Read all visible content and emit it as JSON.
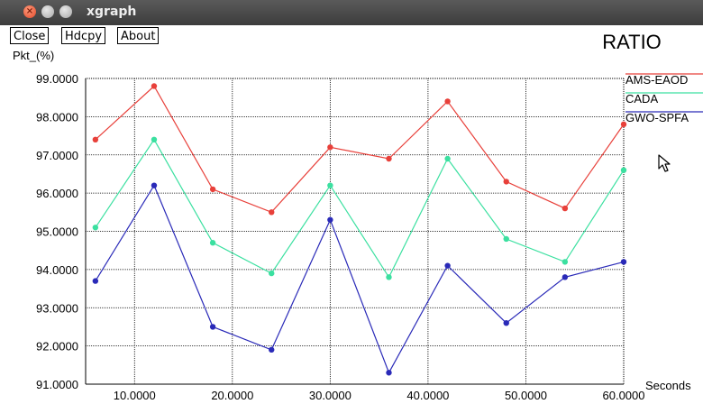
{
  "window": {
    "title": "xgraph"
  },
  "toolbar": {
    "close_label": "Close",
    "hdcpy_label": "Hdcpy",
    "about_label": "About"
  },
  "icons": {
    "close": "close-icon",
    "minimize": "minimize-icon",
    "maximize": "maximize-icon",
    "cursor": "mouse-pointer-icon"
  },
  "chart_data": {
    "type": "line",
    "title": "RATIO",
    "ylabel": "Pkt_(%)",
    "xlabel": "Seconds",
    "xlim": [
      5,
      60
    ],
    "ylim": [
      91,
      99
    ],
    "x_ticks": [
      {
        "value": 10,
        "label": "10.0000"
      },
      {
        "value": 20,
        "label": "20.0000"
      },
      {
        "value": 30,
        "label": "30.0000"
      },
      {
        "value": 40,
        "label": "40.0000"
      },
      {
        "value": 50,
        "label": "50.0000"
      },
      {
        "value": 60,
        "label": "60.0000"
      }
    ],
    "y_ticks": [
      {
        "value": 91,
        "label": "91.0000"
      },
      {
        "value": 92,
        "label": "92.0000"
      },
      {
        "value": 93,
        "label": "93.0000"
      },
      {
        "value": 94,
        "label": "94.0000"
      },
      {
        "value": 95,
        "label": "95.0000"
      },
      {
        "value": 96,
        "label": "96.0000"
      },
      {
        "value": 97,
        "label": "97.0000"
      },
      {
        "value": 98,
        "label": "98.0000"
      },
      {
        "value": 99,
        "label": "99.0000"
      }
    ],
    "grid": true,
    "legend": "right",
    "x": [
      6,
      12,
      18,
      24,
      30,
      36,
      42,
      48,
      54,
      60
    ],
    "series": [
      {
        "name": "AMS-EAOD",
        "color": "#e8403a",
        "values": [
          97.4,
          98.8,
          96.1,
          95.5,
          97.2,
          96.9,
          98.4,
          96.3,
          95.6,
          97.8
        ]
      },
      {
        "name": "CADA",
        "color": "#3be0a0",
        "values": [
          95.1,
          97.4,
          94.7,
          93.9,
          96.2,
          93.8,
          96.9,
          94.8,
          94.2,
          96.6
        ]
      },
      {
        "name": "GWO-SPFA",
        "color": "#2a2ab8",
        "values": [
          93.7,
          96.2,
          92.5,
          91.9,
          95.3,
          91.3,
          94.1,
          92.6,
          93.8,
          94.2
        ]
      }
    ]
  }
}
